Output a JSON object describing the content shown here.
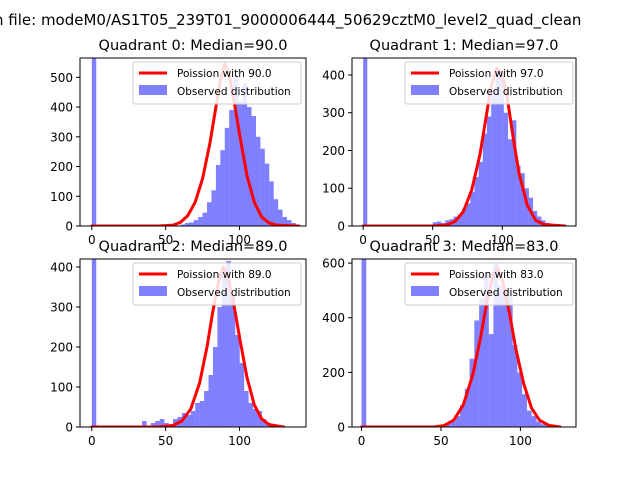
{
  "figure": {
    "suptitle": "n file: modeM0/AS1T05_239T01_9000006444_50629cztM0_level2_quad_clean",
    "legend_fit_prefix": "Poission with ",
    "legend_observed": "Observed distribution"
  },
  "colors": {
    "hist": "#8080ff",
    "fit": "#ff0000",
    "fit_glow": "#ff8080",
    "axis": "#000000",
    "background": "#ffffff"
  },
  "chart_data": [
    {
      "type": "bar",
      "title": "Quadrant 0: Median=90.0",
      "median": 90.0,
      "legend_fit": "Poission with 90.0",
      "xlim": [
        -8,
        145
      ],
      "ylim": [
        0,
        565
      ],
      "xticks": [
        0,
        50,
        100
      ],
      "yticks": [
        0,
        100,
        200,
        300,
        400,
        500
      ],
      "zero_bin": 565,
      "bin_width": 3,
      "bin_start": 60,
      "counts": [
        5,
        10,
        12,
        20,
        30,
        45,
        80,
        120,
        205,
        255,
        330,
        390,
        510,
        420,
        480,
        400,
        370,
        300,
        260,
        210,
        150,
        90,
        55,
        30,
        20,
        10,
        5
      ],
      "fit_points": [
        [
          0,
          0
        ],
        [
          45,
          0
        ],
        [
          55,
          3
        ],
        [
          60,
          12
        ],
        [
          65,
          35
        ],
        [
          70,
          80
        ],
        [
          75,
          160
        ],
        [
          80,
          280
        ],
        [
          84,
          400
        ],
        [
          87,
          490
        ],
        [
          90,
          545
        ],
        [
          93,
          510
        ],
        [
          96,
          430
        ],
        [
          100,
          310
        ],
        [
          105,
          170
        ],
        [
          110,
          80
        ],
        [
          115,
          30
        ],
        [
          120,
          10
        ],
        [
          125,
          3
        ],
        [
          140,
          0
        ]
      ]
    },
    {
      "type": "bar",
      "title": "Quadrant 1: Median=97.0",
      "median": 97.0,
      "legend_fit": "Poission with 97.0",
      "xlim": [
        -8,
        153
      ],
      "ylim": [
        0,
        445
      ],
      "xticks": [
        0,
        50,
        100
      ],
      "yticks": [
        0,
        100,
        200,
        300,
        400
      ],
      "zero_bin": 445,
      "bin_width": 3,
      "bin_start": 50,
      "counts": [
        10,
        12,
        8,
        15,
        18,
        25,
        30,
        45,
        60,
        90,
        130,
        170,
        245,
        290,
        360,
        415,
        395,
        300,
        230,
        280,
        160,
        140,
        100,
        75,
        40,
        25,
        15,
        8,
        5
      ],
      "fit_points": [
        [
          0,
          0
        ],
        [
          50,
          0
        ],
        [
          60,
          3
        ],
        [
          66,
          12
        ],
        [
          72,
          38
        ],
        [
          78,
          95
        ],
        [
          84,
          190
        ],
        [
          88,
          280
        ],
        [
          92,
          370
        ],
        [
          96,
          418
        ],
        [
          100,
          405
        ],
        [
          104,
          330
        ],
        [
          108,
          230
        ],
        [
          112,
          140
        ],
        [
          118,
          55
        ],
        [
          124,
          15
        ],
        [
          130,
          4
        ],
        [
          145,
          0
        ]
      ]
    },
    {
      "type": "bar",
      "title": "Quadrant 2: Median=89.0",
      "median": 89.0,
      "legend_fit": "Poission with 89.0",
      "xlim": [
        -8,
        145
      ],
      "ylim": [
        0,
        420
      ],
      "xticks": [
        0,
        50,
        100
      ],
      "yticks": [
        0,
        100,
        200,
        300,
        400
      ],
      "zero_bin": 420,
      "bin_width": 3,
      "bin_start": 34,
      "counts": [
        15,
        0,
        10,
        15,
        20,
        10,
        0,
        20,
        25,
        35,
        30,
        40,
        60,
        65,
        90,
        130,
        200,
        300,
        380,
        415,
        330,
        230,
        160,
        90,
        60,
        45,
        40,
        20,
        10,
        5,
        3
      ],
      "fit_points": [
        [
          0,
          0
        ],
        [
          45,
          0
        ],
        [
          55,
          4
        ],
        [
          61,
          15
        ],
        [
          67,
          45
        ],
        [
          73,
          110
        ],
        [
          78,
          200
        ],
        [
          82,
          290
        ],
        [
          86,
          365
        ],
        [
          89,
          400
        ],
        [
          92,
          380
        ],
        [
          96,
          310
        ],
        [
          100,
          225
        ],
        [
          105,
          125
        ],
        [
          110,
          55
        ],
        [
          115,
          20
        ],
        [
          120,
          6
        ],
        [
          130,
          0
        ]
      ]
    },
    {
      "type": "bar",
      "title": "Quadrant 3: Median=83.0",
      "median": 83.0,
      "legend_fit": "Poission with 83.0",
      "xlim": [
        -6,
        135
      ],
      "ylim": [
        0,
        615
      ],
      "xticks": [
        0,
        50,
        100
      ],
      "yticks": [
        0,
        200,
        400,
        600
      ],
      "zero_bin": 615,
      "bin_width": 3,
      "bin_start": 50,
      "counts": [
        5,
        10,
        20,
        40,
        80,
        140,
        250,
        390,
        470,
        560,
        340,
        600,
        520,
        500,
        480,
        300,
        200,
        120,
        60,
        40,
        20,
        10,
        5
      ],
      "fit_points": [
        [
          0,
          0
        ],
        [
          45,
          0
        ],
        [
          52,
          5
        ],
        [
          58,
          25
        ],
        [
          64,
          80
        ],
        [
          70,
          190
        ],
        [
          75,
          330
        ],
        [
          79,
          460
        ],
        [
          83,
          560
        ],
        [
          86,
          580
        ],
        [
          89,
          530
        ],
        [
          93,
          420
        ],
        [
          97,
          290
        ],
        [
          102,
          160
        ],
        [
          107,
          70
        ],
        [
          112,
          25
        ],
        [
          118,
          6
        ],
        [
          125,
          0
        ]
      ]
    }
  ]
}
